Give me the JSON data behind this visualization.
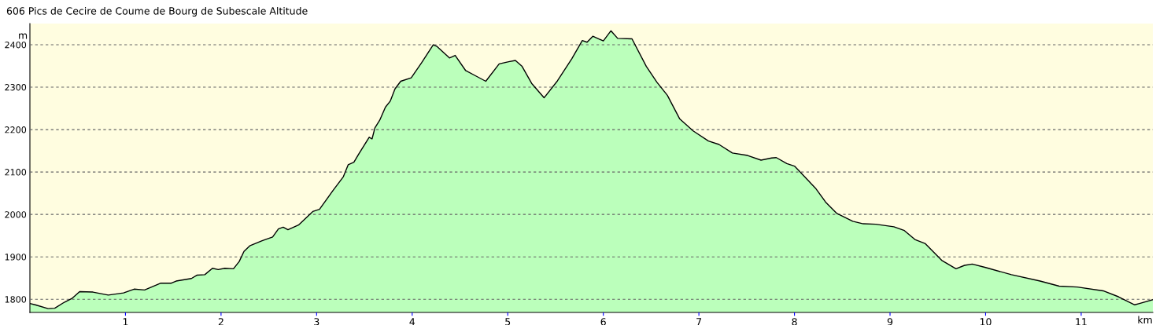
{
  "chart_data": {
    "type": "area",
    "title": "606 Pics de Cecire de Coume de Bourg de Subescale Altitude",
    "xlabel": "km",
    "ylabel": "m",
    "xlim": [
      0,
      11.75
    ],
    "ylim": [
      1769,
      2450
    ],
    "xticks": [
      1,
      2,
      3,
      4,
      5,
      6,
      7,
      8,
      9,
      10,
      11
    ],
    "yticks": [
      1800,
      1900,
      2000,
      2100,
      2200,
      2300,
      2400
    ],
    "grid": "y",
    "legend": false,
    "series": [
      {
        "color": "#bbffbb",
        "x": [
          0,
          0.055,
          0.19,
          0.26,
          0.36,
          0.44,
          0.52,
          0.66,
          0.82,
          0.98,
          1.09,
          1.2,
          1.37,
          1.48,
          1.53,
          1.69,
          1.75,
          1.83,
          1.91,
          1.97,
          2.04,
          2.13,
          2.19,
          2.24,
          2.3,
          2.43,
          2.54,
          2.6,
          2.65,
          2.7,
          2.81,
          2.96,
          3.03,
          3.17,
          3.28,
          3.33,
          3.39,
          3.44,
          3.55,
          3.58,
          3.61,
          3.66,
          3.72,
          3.77,
          3.82,
          3.88,
          3.99,
          4.1,
          4.22,
          4.26,
          4.39,
          4.45,
          4.56,
          4.67,
          4.77,
          4.91,
          5.01,
          5.08,
          5.15,
          5.25,
          5.38,
          5.52,
          5.67,
          5.78,
          5.83,
          5.89,
          6.0,
          6.08,
          6.15,
          6.3,
          6.45,
          6.56,
          6.67,
          6.8,
          6.94,
          7.1,
          7.21,
          7.35,
          7.51,
          7.65,
          7.76,
          7.81,
          7.92,
          8.0,
          8.09,
          8.22,
          8.33,
          8.44,
          8.61,
          8.72,
          8.85,
          9.04,
          9.15,
          9.26,
          9.37,
          9.54,
          9.69,
          9.78,
          9.86,
          10.0,
          10.27,
          10.57,
          10.77,
          10.96,
          11.23,
          11.39,
          11.56,
          11.61,
          11.75
        ],
        "values": [
          1790,
          1787,
          1778,
          1779,
          1793,
          1802,
          1818,
          1817,
          1810,
          1815,
          1824,
          1822,
          1838,
          1838,
          1843,
          1849,
          1857,
          1858,
          1873,
          1870,
          1873,
          1872,
          1889,
          1913,
          1926,
          1938,
          1947,
          1966,
          1970,
          1964,
          1975,
          2007,
          2012,
          2056,
          2089,
          2117,
          2123,
          2142,
          2182,
          2178,
          2204,
          2222,
          2253,
          2267,
          2296,
          2314,
          2322,
          2358,
          2400,
          2396,
          2369,
          2375,
          2339,
          2326,
          2314,
          2355,
          2360,
          2363,
          2349,
          2309,
          2275,
          2315,
          2367,
          2410,
          2406,
          2420,
          2409,
          2433,
          2415,
          2414,
          2349,
          2312,
          2281,
          2225,
          2197,
          2173,
          2165,
          2145,
          2139,
          2128,
          2133,
          2134,
          2120,
          2114,
          2093,
          2062,
          2028,
          2003,
          1984,
          1978,
          1977,
          1971,
          1962,
          1941,
          1931,
          1892,
          1872,
          1880,
          1883,
          1875,
          1858,
          1843,
          1831,
          1829,
          1820,
          1806,
          1787,
          1790,
          1799
        ]
      }
    ]
  }
}
